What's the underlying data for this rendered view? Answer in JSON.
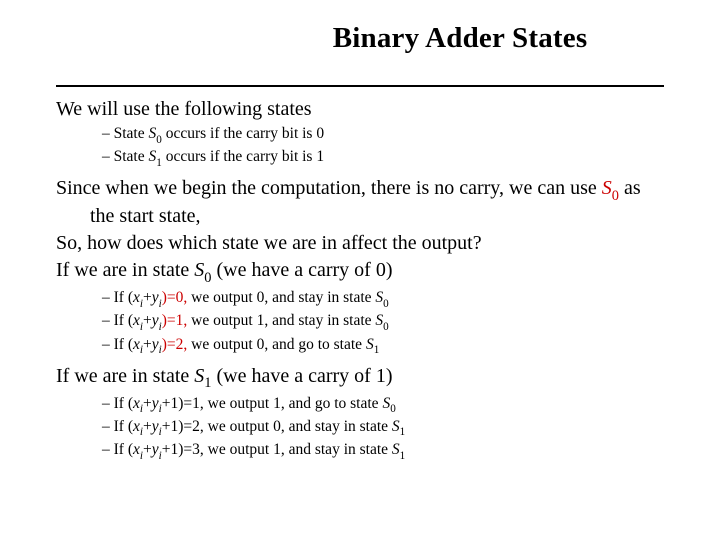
{
  "title": "Binary Adder States",
  "p1": "We will use the following states",
  "states": {
    "s0": {
      "pre": "State ",
      "sym": "S",
      "sub": "0",
      "post": " occurs if the carry bit is 0"
    },
    "s1": {
      "pre": "State ",
      "sym": "S",
      "sub": "1",
      "post": " occurs if the carry bit is 1"
    }
  },
  "since": {
    "a": "Since when we begin the computation, there is no carry, we can use ",
    "sym": "S",
    "sub": "0",
    "b": " as the start state,"
  },
  "so": "So, how does which state we are in affect the output?",
  "ifS0": {
    "a": "If we are in state ",
    "sym": "S",
    "sub": "0",
    "b": "(we have a carry of 0)"
  },
  "rulesS0": [
    {
      "a": "If (",
      "x": "x",
      "xs": "i",
      "p": "+",
      "y": "y",
      "ys": "i",
      "b": ")=0,",
      "out": " we output 0, and stay in state ",
      "sym": "S",
      "sub": "0"
    },
    {
      "a": "If (",
      "x": "x",
      "xs": "i",
      "p": "+",
      "y": "y",
      "ys": "i",
      "b": ")=1,",
      "out": " we output 1, and stay in state ",
      "sym": "S",
      "sub": "0"
    },
    {
      "a": "If (",
      "x": "x",
      "xs": "i",
      "p": "+",
      "y": "y",
      "ys": "i",
      "b": ")=2,",
      "out": " we output 0, and go to state ",
      "sym": "S",
      "sub": "1"
    }
  ],
  "ifS1": {
    "a": "If we are in state ",
    "sym": "S",
    "sub": "1",
    "b": "(we have a carry of 1)"
  },
  "rulesS1": [
    {
      "a": "If (",
      "x": "x",
      "xs": "i",
      "p": "+",
      "y": "y",
      "ys": "i",
      "c": "+1)=1,",
      "out": " we output 1, and go to state ",
      "sym": "S",
      "sub": "0"
    },
    {
      "a": "If (",
      "x": "x",
      "xs": "i",
      "p": "+",
      "y": "y",
      "ys": "i",
      "c": "+1)=2,",
      "out": " we output 0, and stay in state ",
      "sym": "S",
      "sub": "1"
    },
    {
      "a": "If (",
      "x": "x",
      "xs": "i",
      "p": "+",
      "y": "y",
      "ys": "i",
      "c": "+1)=3,",
      "out": " we output 1, and stay in state ",
      "sym": "S",
      "sub": "1"
    }
  ],
  "colors": {
    "text": "#000000",
    "accent": "#cc0000",
    "bg": "#ffffff",
    "rule": "#000000"
  }
}
